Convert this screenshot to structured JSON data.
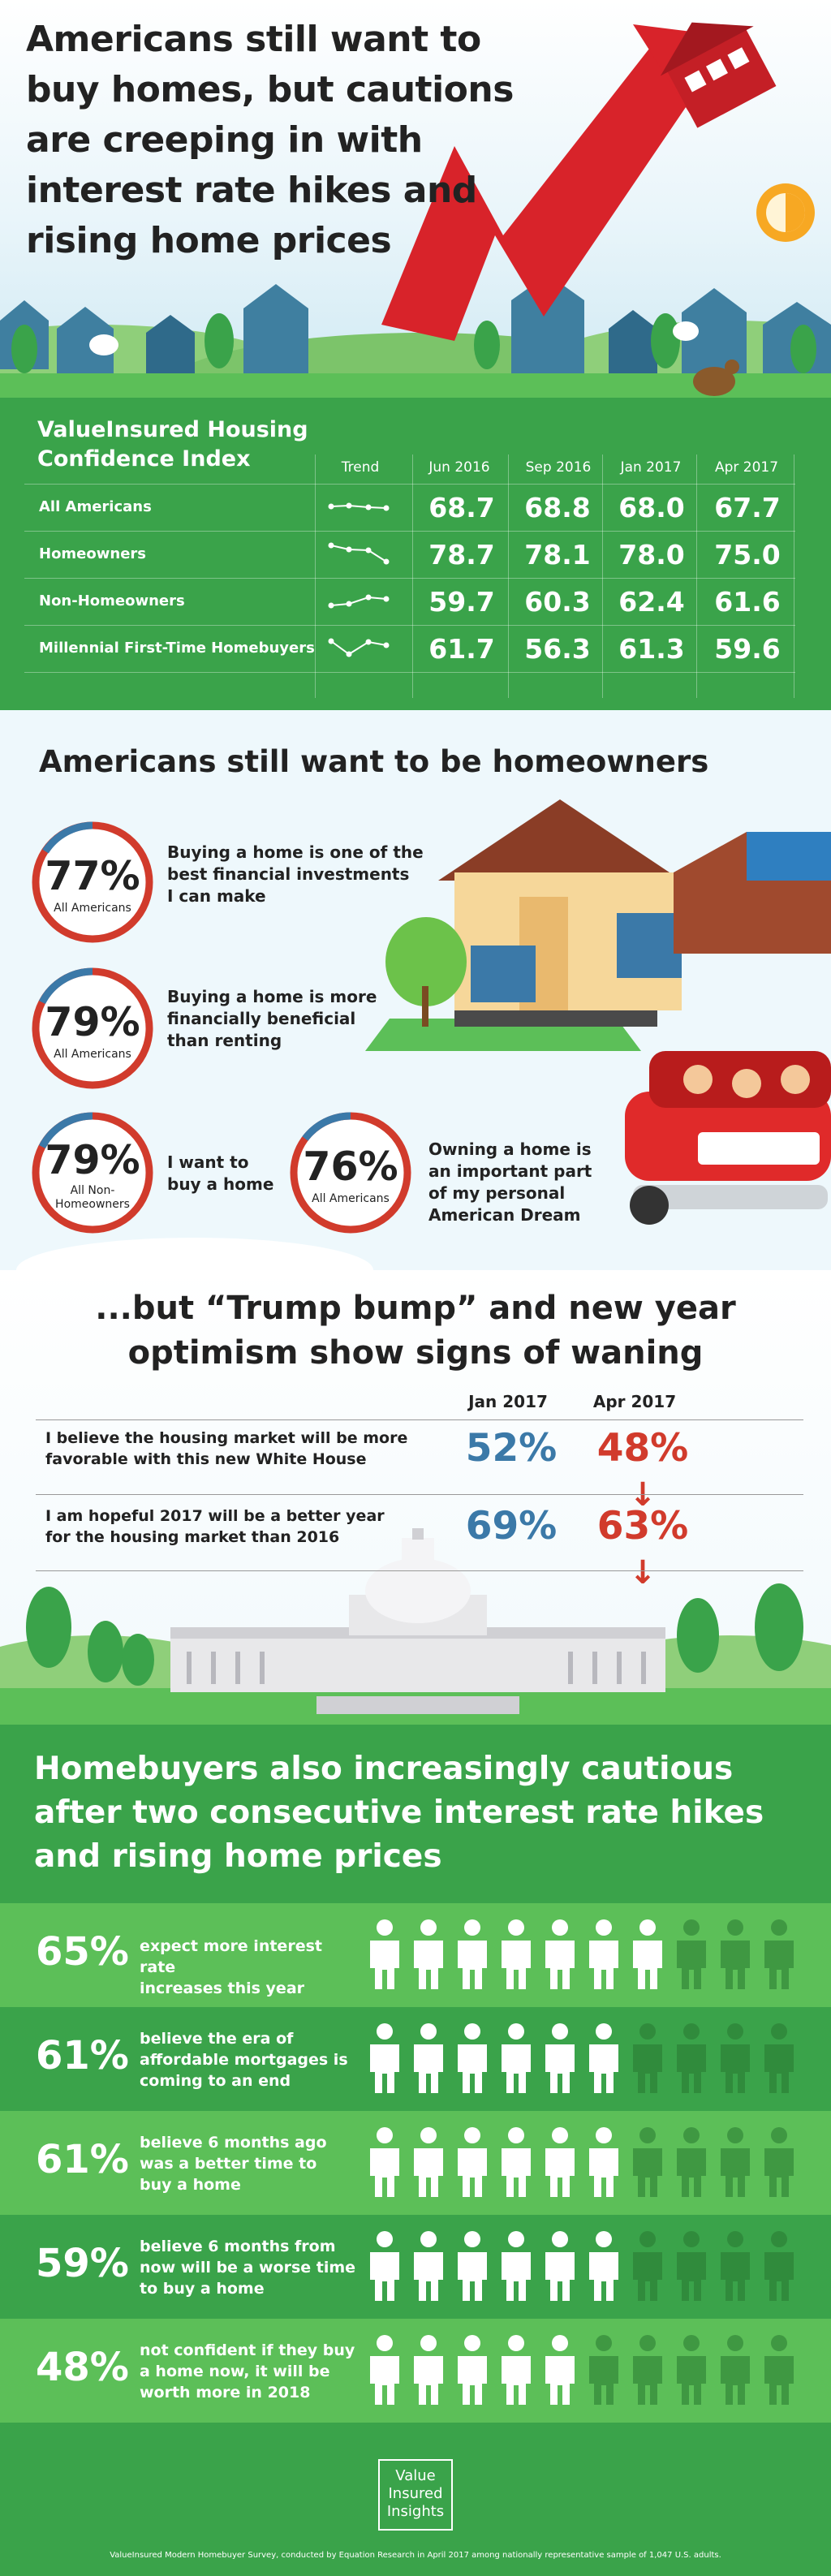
{
  "hero": {
    "title_lines": [
      "Americans still want to",
      "buy homes, but cautions",
      "are creeping in with",
      "interest rate hikes and",
      "rising home prices"
    ]
  },
  "index": {
    "title_lines": [
      "ValueInsured Housing",
      "Confidence Index"
    ],
    "columns": [
      "Trend",
      "Jun 2016",
      "Sep 2016",
      "Jan 2017",
      "Apr 2017"
    ],
    "rows": [
      {
        "label": "All Americans",
        "values": [
          "68.7",
          "68.8",
          "68.0",
          "67.7"
        ]
      },
      {
        "label": "Homeowners",
        "values": [
          "78.7",
          "78.1",
          "78.0",
          "75.0"
        ]
      },
      {
        "label": "Non-Homeowners",
        "values": [
          "59.7",
          "60.3",
          "62.4",
          "61.6"
        ]
      },
      {
        "label": "Millennial First-Time Homebuyers",
        "values": [
          "61.7",
          "56.3",
          "61.3",
          "59.6"
        ]
      }
    ]
  },
  "homeowners": {
    "title": "Americans still want to be homeowners",
    "stats": [
      {
        "pct": "77%",
        "group": "All Americans",
        "text": [
          "Buying a home is one of the",
          "best financial investments",
          "I can make"
        ]
      },
      {
        "pct": "79%",
        "group": "All Americans",
        "text": [
          "Buying a home is more",
          "financially beneficial",
          "than renting"
        ]
      },
      {
        "pct": "79%",
        "group_lines": [
          "All Non-",
          "Homeowners"
        ],
        "text": [
          "I want to",
          "buy a home"
        ]
      },
      {
        "pct": "76%",
        "group": "All Americans",
        "text": [
          "Owning a home is",
          "an important part",
          "of my personal",
          "American Dream"
        ]
      }
    ]
  },
  "trump": {
    "title_lines": [
      "...but “Trump bump” and new year",
      "optimism show signs of waning"
    ],
    "col_a": "Jan 2017",
    "col_b": "Apr 2017",
    "rows": [
      {
        "text": [
          "I believe the housing market will be more",
          "favorable with this new White House"
        ],
        "a": "52%",
        "b": "48%"
      },
      {
        "text": [
          "I am hopeful 2017 will be a better year",
          "for the housing market than 2016"
        ],
        "a": "69%",
        "b": "63%"
      }
    ],
    "arrow": "↓"
  },
  "cautious": {
    "title_lines": [
      "Homebuyers also increasingly cautious",
      "after two consecutive interest rate hikes",
      "and rising home prices"
    ],
    "rows": [
      {
        "pct": "65%",
        "text": [
          "expect more interest rate",
          "increases this year"
        ],
        "fraction": 0.65
      },
      {
        "pct": "61%",
        "text": [
          "believe the era of",
          "affordable mortgages is",
          "coming to an end"
        ],
        "fraction": 0.61
      },
      {
        "pct": "61%",
        "text": [
          "believe 6 months ago",
          "was a better time to",
          "buy a home"
        ],
        "fraction": 0.61
      },
      {
        "pct": "59%",
        "text": [
          "believe 6 months from",
          "now will be a worse time",
          "to buy a home"
        ],
        "fraction": 0.59
      },
      {
        "pct": "48%",
        "text": [
          "not confident if they buy",
          "a home now, it will be",
          "worth more in 2018"
        ],
        "fraction": 0.48
      }
    ]
  },
  "footer": {
    "logo_lines": [
      "Value",
      "Insured",
      "Insights"
    ],
    "note": "ValueInsured Modern Homebuyer Survey, conducted by Equation Research in April 2017 among nationally representative sample of 1,047 U.S. adults."
  },
  "colors": {
    "green": "#3aa34a",
    "light_green": "#5cbf58",
    "red": "#d13b2c",
    "blue": "#3b79a8"
  }
}
